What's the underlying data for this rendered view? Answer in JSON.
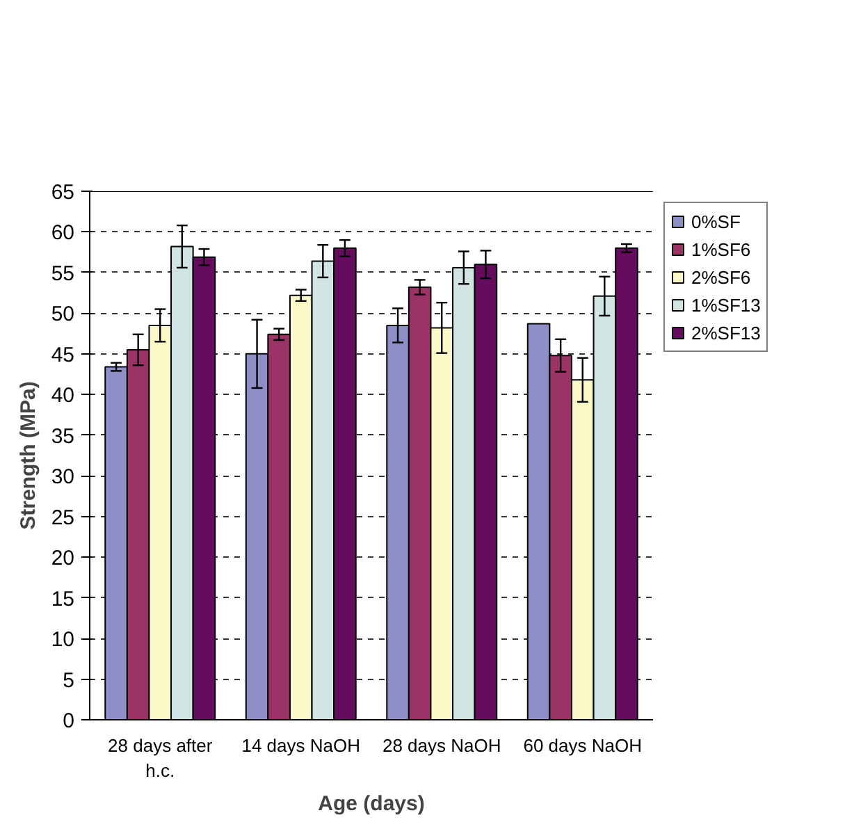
{
  "chart_data": {
    "type": "bar",
    "xlabel": "Age (days)",
    "ylabel": "Strength (MPa)",
    "categories": [
      "28 days after\nh.c.",
      "14 days NaOH",
      "28 days NaOH",
      "60 days NaOH"
    ],
    "series": [
      {
        "name": "0%SF",
        "color": "#8e8fc6",
        "values": [
          43.4,
          45.0,
          48.5,
          48.7
        ],
        "errors": [
          0.5,
          4.2,
          2.1,
          null
        ]
      },
      {
        "name": "1%SF6",
        "color": "#9b3366",
        "values": [
          45.5,
          47.4,
          53.2,
          44.8
        ],
        "errors": [
          1.9,
          0.7,
          0.9,
          2.0
        ]
      },
      {
        "name": "2%SF6",
        "color": "#fcf9c9",
        "values": [
          48.5,
          52.2,
          48.2,
          41.8
        ],
        "errors": [
          2.0,
          0.7,
          3.1,
          2.7
        ]
      },
      {
        "name": "1%SF13",
        "color": "#d0e4e4",
        "values": [
          58.2,
          56.4,
          55.6,
          52.1
        ],
        "errors": [
          2.6,
          2.0,
          2.0,
          2.4
        ]
      },
      {
        "name": "2%SF13",
        "color": "#650c5e",
        "values": [
          56.9,
          58.0,
          56.0,
          58.0
        ],
        "errors": [
          1.0,
          1.0,
          1.7,
          0.5
        ]
      }
    ],
    "ylim": [
      0,
      65
    ],
    "yticks": [
      0,
      5,
      10,
      15,
      20,
      25,
      30,
      35,
      40,
      45,
      50,
      55,
      60,
      65
    ],
    "grid": "y",
    "legend": "top right"
  }
}
